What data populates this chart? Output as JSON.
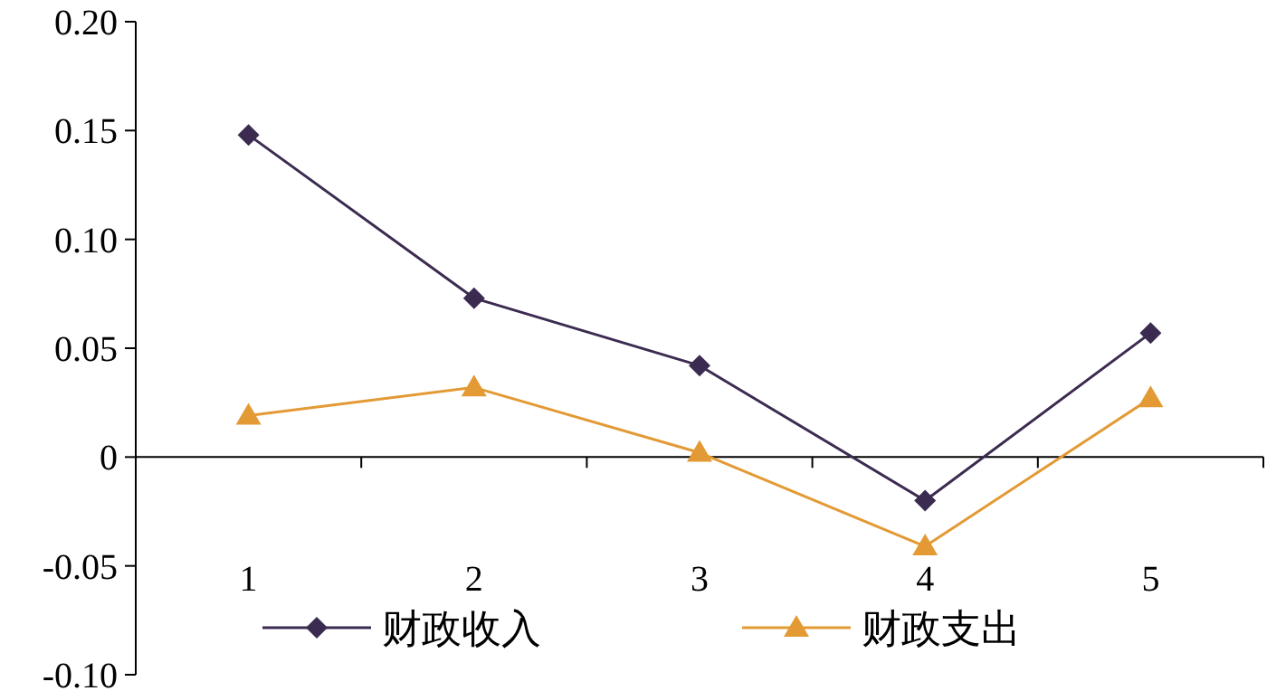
{
  "chart_data": {
    "type": "line",
    "categories": [
      "1",
      "2",
      "3",
      "4",
      "5"
    ],
    "series": [
      {
        "name": "财政收入",
        "color": "#3b2b50",
        "marker": "diamond",
        "values": [
          0.148,
          0.073,
          0.042,
          -0.02,
          0.057
        ]
      },
      {
        "name": "财政支出",
        "color": "#e39a35",
        "marker": "triangle",
        "values": [
          0.019,
          0.032,
          0.002,
          -0.041,
          0.027
        ]
      }
    ],
    "ylim": [
      -0.1,
      0.2
    ],
    "yticks": [
      {
        "value": -0.1,
        "label": "-0.10"
      },
      {
        "value": -0.05,
        "label": "-0.05"
      },
      0,
      {
        "value": 0.05,
        "label": "0.05"
      },
      {
        "value": 0.1,
        "label": "0.10"
      },
      {
        "value": 0.15,
        "label": "0.15"
      },
      {
        "value": 0.2,
        "label": "0.20"
      }
    ],
    "legend": "bottom"
  }
}
